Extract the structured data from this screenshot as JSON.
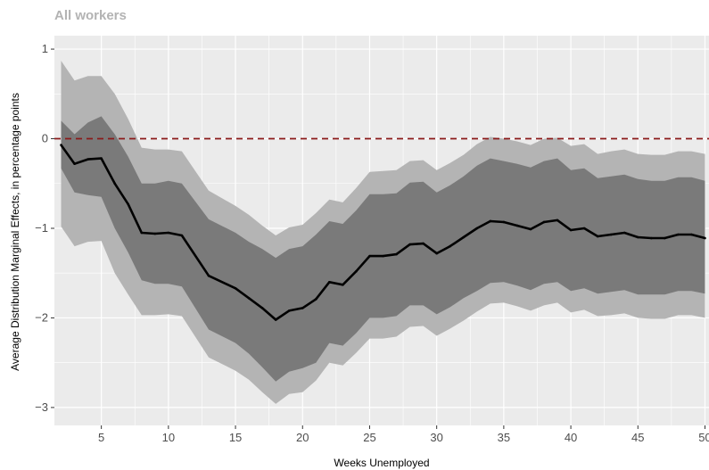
{
  "chart_data": {
    "type": "line",
    "subtitle": "All workers",
    "xlabel": "Weeks Unemployed",
    "ylabel": "Average Distribution Marginal Effects, in percentage points",
    "xlim": [
      1.5,
      50.3
    ],
    "ylim": [
      -3.2,
      1.15
    ],
    "xticks": [
      5,
      10,
      15,
      20,
      25,
      30,
      35,
      40,
      45,
      50
    ],
    "xtick_labels": [
      "5",
      "10",
      "15",
      "20",
      "25",
      "30",
      "35",
      "40",
      "45",
      "50"
    ],
    "yticks": [
      1,
      0,
      -1,
      -2,
      -3
    ],
    "ytick_labels": [
      "1",
      "0",
      "−1",
      "−2",
      "−3"
    ],
    "reference_line": 0,
    "x": [
      2,
      3,
      4,
      5,
      6,
      7,
      8,
      9,
      10,
      11,
      13,
      15,
      16,
      17,
      18,
      19,
      20,
      21,
      22,
      23,
      24,
      25,
      26,
      27,
      28,
      29,
      30,
      31,
      32,
      33,
      34,
      35,
      36,
      37,
      38,
      39,
      40,
      41,
      42,
      43,
      44,
      45,
      46,
      47,
      48,
      49,
      50
    ],
    "series": [
      {
        "values": [
          -0.07,
          -0.28,
          -0.23,
          -0.22,
          -0.5,
          -0.73,
          -1.05,
          -1.06,
          -1.05,
          -1.08,
          -1.53,
          -1.67,
          -1.78,
          -1.89,
          -2.02,
          -1.92,
          -1.89,
          -1.79,
          -1.6,
          -1.63,
          -1.48,
          -1.31,
          -1.31,
          -1.29,
          -1.18,
          -1.17,
          -1.28,
          -1.2,
          -1.1,
          -1.0,
          -0.92,
          -0.93,
          -0.97,
          -1.01,
          -0.93,
          -0.91,
          -1.02,
          -1.0,
          -1.09,
          -1.07,
          -1.05,
          -1.1,
          -1.11,
          -1.11,
          -1.07,
          -1.07,
          -1.11
        ],
        "inner_upper": [
          0.2,
          0.05,
          0.18,
          0.25,
          0.05,
          -0.2,
          -0.5,
          -0.5,
          -0.47,
          -0.5,
          -0.9,
          -1.05,
          -1.15,
          -1.23,
          -1.33,
          -1.23,
          -1.2,
          -1.07,
          -0.92,
          -0.95,
          -0.8,
          -0.62,
          -0.62,
          -0.61,
          -0.49,
          -0.48,
          -0.6,
          -0.52,
          -0.42,
          -0.3,
          -0.22,
          -0.25,
          -0.28,
          -0.32,
          -0.25,
          -0.22,
          -0.35,
          -0.33,
          -0.44,
          -0.42,
          -0.4,
          -0.45,
          -0.47,
          -0.47,
          -0.43,
          -0.43,
          -0.47
        ],
        "inner_lower": [
          -0.33,
          -0.6,
          -0.63,
          -0.65,
          -1.0,
          -1.27,
          -1.58,
          -1.62,
          -1.62,
          -1.65,
          -2.13,
          -2.28,
          -2.4,
          -2.55,
          -2.71,
          -2.6,
          -2.56,
          -2.5,
          -2.28,
          -2.31,
          -2.17,
          -2.0,
          -2.0,
          -1.98,
          -1.86,
          -1.86,
          -1.96,
          -1.88,
          -1.78,
          -1.7,
          -1.61,
          -1.6,
          -1.64,
          -1.69,
          -1.62,
          -1.6,
          -1.7,
          -1.67,
          -1.73,
          -1.71,
          -1.69,
          -1.74,
          -1.74,
          -1.74,
          -1.7,
          -1.7,
          -1.73
        ],
        "outer_upper": [
          0.87,
          0.65,
          0.7,
          0.7,
          0.5,
          0.22,
          -0.1,
          -0.12,
          -0.12,
          -0.14,
          -0.58,
          -0.75,
          -0.85,
          -0.97,
          -1.08,
          -0.99,
          -0.96,
          -0.83,
          -0.68,
          -0.71,
          -0.55,
          -0.37,
          -0.36,
          -0.35,
          -0.25,
          -0.24,
          -0.35,
          -0.27,
          -0.18,
          -0.06,
          0.02,
          0.0,
          -0.03,
          -0.07,
          0.0,
          0.01,
          -0.08,
          -0.06,
          -0.17,
          -0.14,
          -0.12,
          -0.17,
          -0.18,
          -0.18,
          -0.14,
          -0.14,
          -0.17
        ],
        "outer_lower": [
          -0.98,
          -1.2,
          -1.15,
          -1.14,
          -1.5,
          -1.74,
          -1.97,
          -1.97,
          -1.96,
          -1.98,
          -2.44,
          -2.59,
          -2.69,
          -2.83,
          -2.96,
          -2.85,
          -2.83,
          -2.7,
          -2.5,
          -2.53,
          -2.39,
          -2.23,
          -2.23,
          -2.21,
          -2.1,
          -2.09,
          -2.2,
          -2.12,
          -2.03,
          -1.93,
          -1.84,
          -1.83,
          -1.87,
          -1.92,
          -1.86,
          -1.83,
          -1.94,
          -1.91,
          -1.98,
          -1.97,
          -1.95,
          -2.0,
          -2.01,
          -2.01,
          -1.97,
          -1.97,
          -2.0
        ]
      }
    ],
    "colors": {
      "panel_background": "#ebebeb",
      "gridline": "#ffffff",
      "line": "#000000",
      "inner_band": "#7a7a7a",
      "outer_band": "#b4b4b4",
      "reference_line": "#8b1a1a",
      "subtitle": "#b3b3b3"
    },
    "grid": true,
    "legend": "none"
  }
}
